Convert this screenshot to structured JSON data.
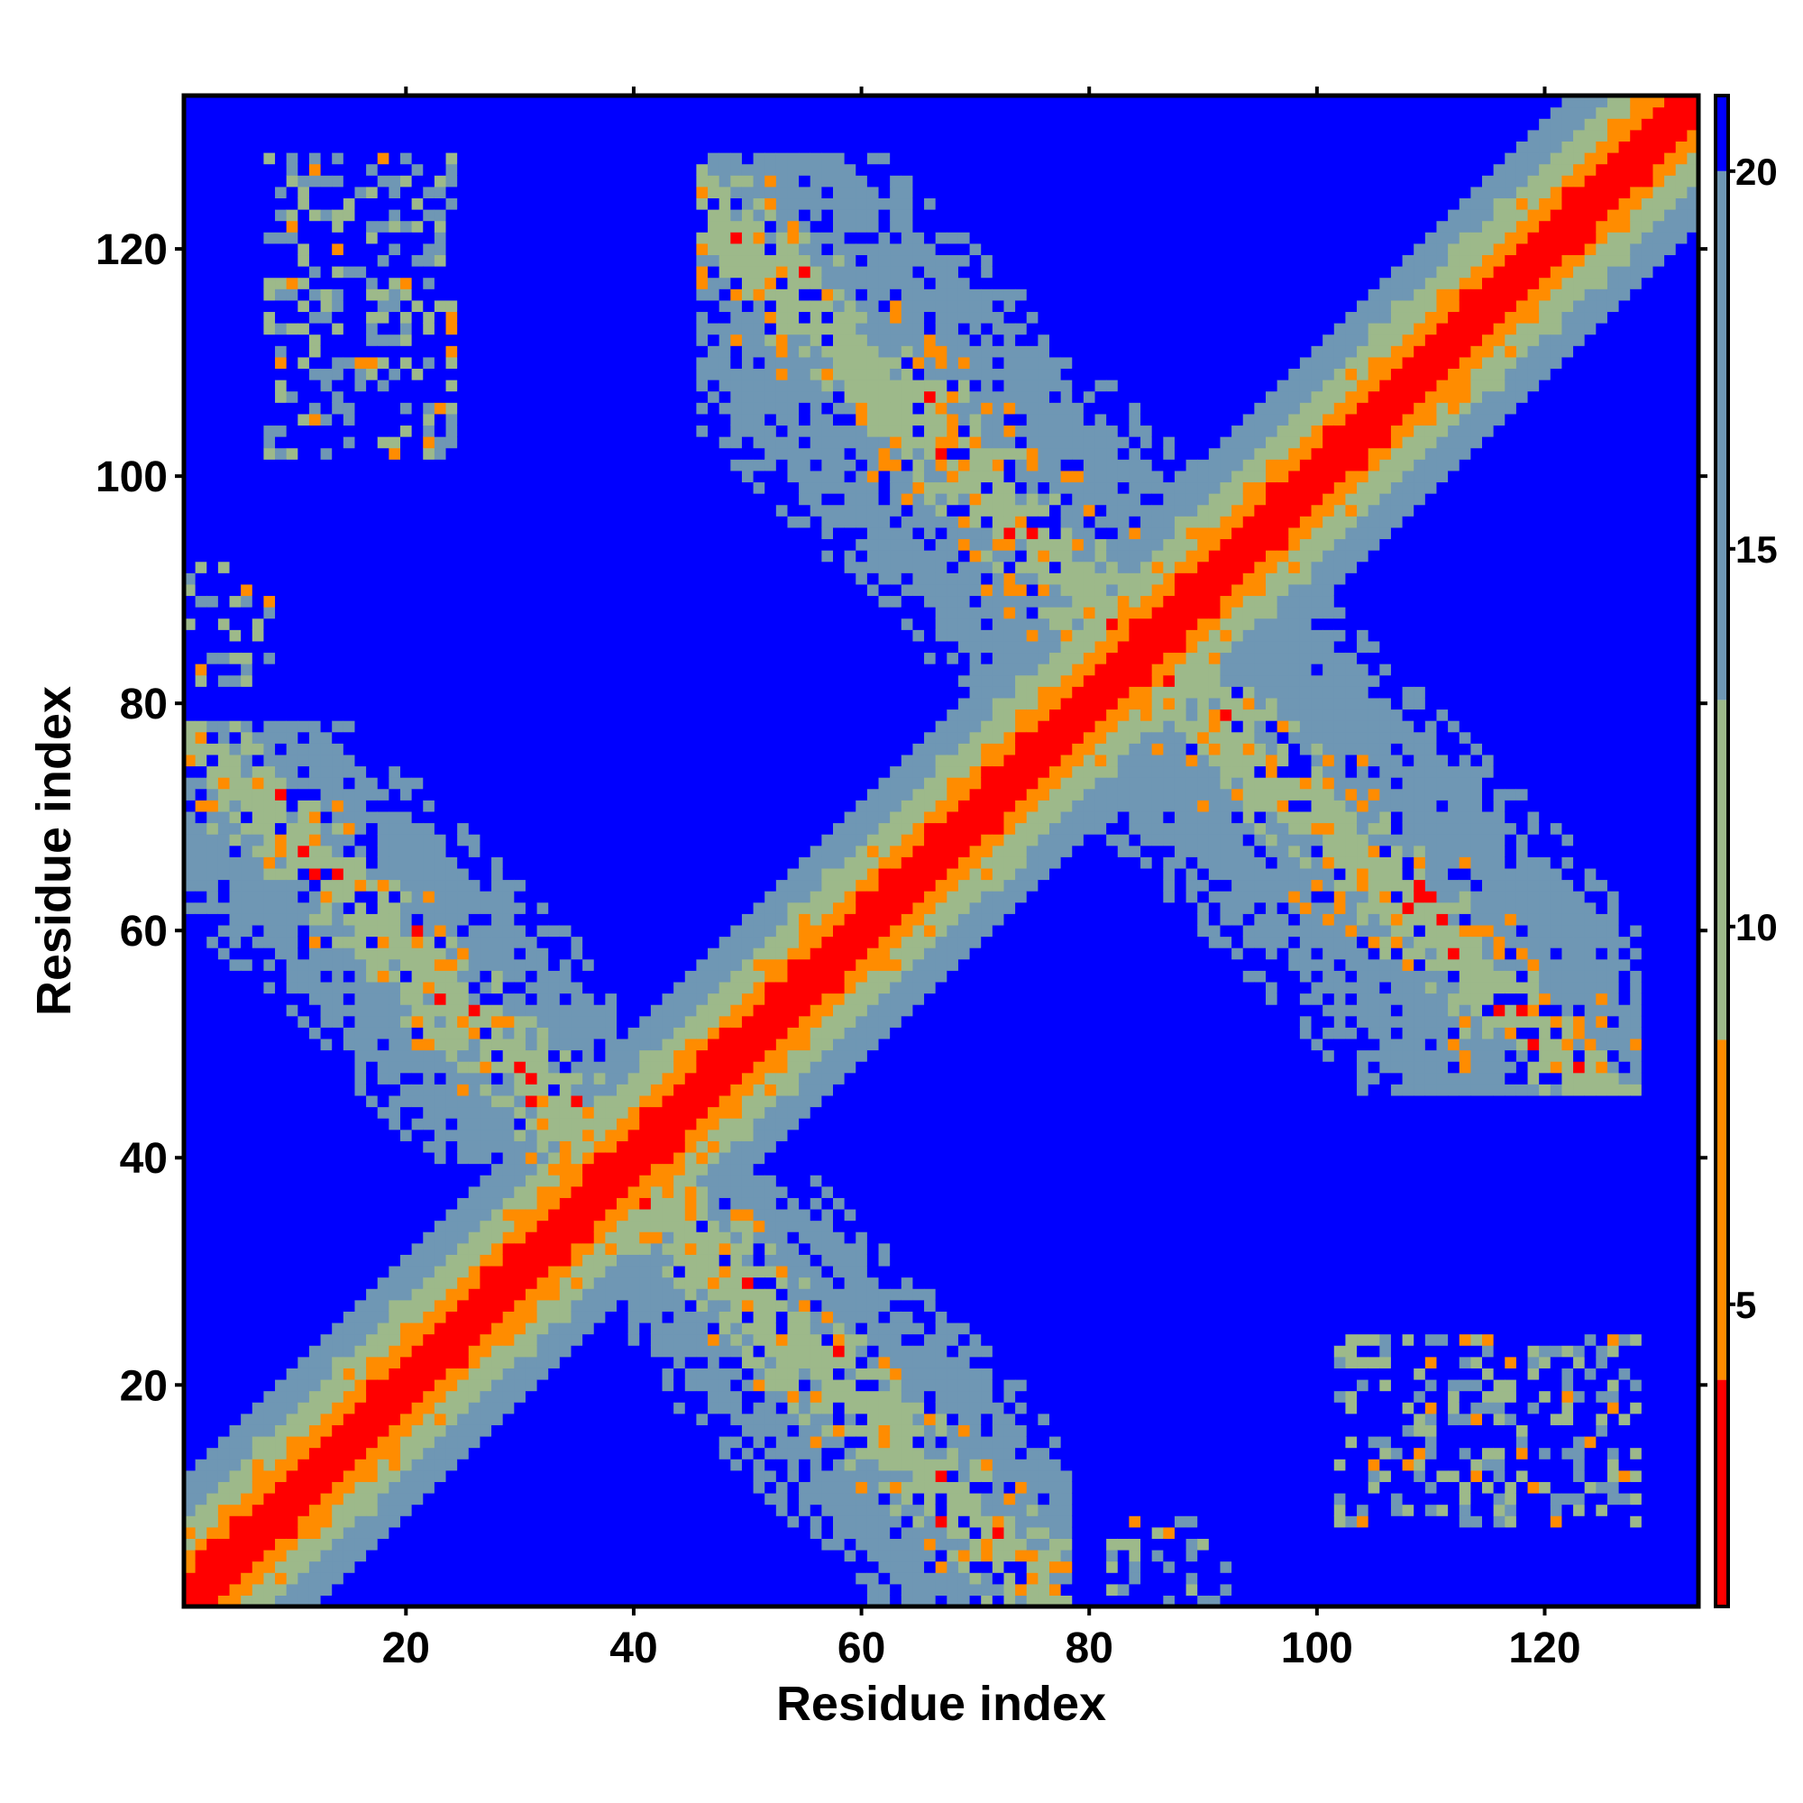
{
  "chart_data": {
    "type": "heatmap",
    "title": "",
    "xlabel": "Residue index",
    "ylabel": "Residue index",
    "n_residues": 133,
    "xlim": [
      1,
      133
    ],
    "ylim": [
      1,
      133
    ],
    "xticks": [
      20,
      40,
      60,
      80,
      100,
      120
    ],
    "yticks": [
      20,
      40,
      60,
      80,
      100,
      120
    ],
    "colorbar": {
      "range": [
        1,
        21
      ],
      "ticks": [
        5,
        10,
        15,
        20
      ],
      "bands": [
        {
          "from": 1,
          "to": 4,
          "color": "#ff0000"
        },
        {
          "from": 4,
          "to": 8.5,
          "color": "#ff8c00"
        },
        {
          "from": 8.5,
          "to": 13,
          "color": "#9db98a"
        },
        {
          "from": 13,
          "to": 20,
          "color": "#6f97b4"
        },
        {
          "from": 20,
          "to": 21,
          "color": "#0000ff"
        }
      ]
    },
    "background_value": 21,
    "diagonal_profile": [
      {
        "offset": 1,
        "value": 2
      },
      {
        "offset": 2,
        "value": 3.5
      },
      {
        "offset": 3,
        "value": 6
      },
      {
        "offset": 4,
        "value": 7.5
      },
      {
        "offset": 5,
        "value": 10
      },
      {
        "offset": 6,
        "value": 11
      },
      {
        "offset": 7,
        "value": 12
      },
      {
        "offset": 8,
        "value": 14
      },
      {
        "offset": 9,
        "value": 16
      },
      {
        "offset": 10,
        "value": 17.5
      },
      {
        "offset": 11,
        "value": 19
      }
    ],
    "contact_regions": [
      {
        "i": [
          1,
          38
        ],
        "j": [
          40,
          78
        ],
        "anti_sum": 78,
        "halfwidth": 6,
        "core_value": 11
      },
      {
        "i": [
          46,
          90
        ],
        "j": [
          80,
          128
        ],
        "anti_sum": 170,
        "halfwidth": 8,
        "core_value": 11
      },
      {
        "i": [
          1,
          9
        ],
        "j": [
          82,
          90
        ],
        "anti_sum": 174,
        "halfwidth": 4,
        "core_value": 12
      },
      {
        "i": [
          8,
          24
        ],
        "j": [
          102,
          128
        ],
        "anti_sum": 0,
        "halfwidth": 0,
        "core_value": 13
      },
      {
        "i": [
          82,
          92
        ],
        "j": [
          1,
          8
        ],
        "anti_sum": 0,
        "halfwidth": 0,
        "core_value": 13
      }
    ]
  }
}
